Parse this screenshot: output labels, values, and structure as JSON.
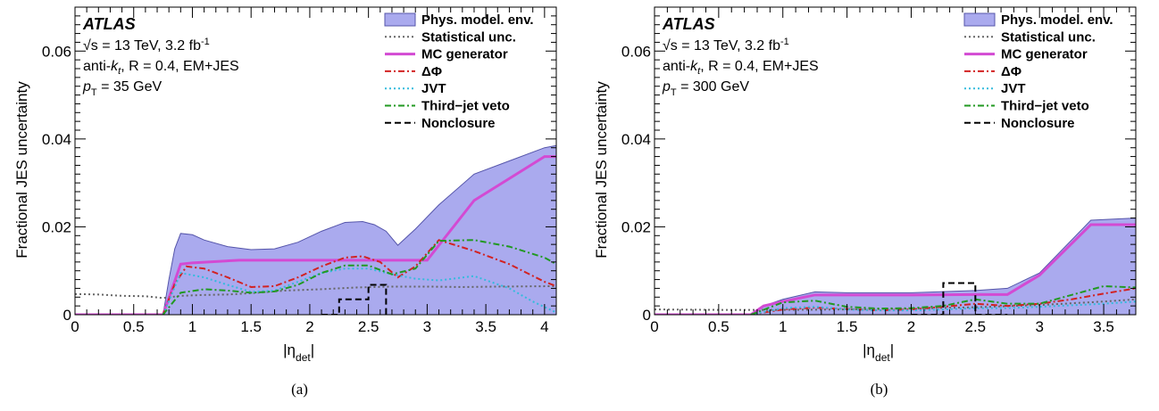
{
  "chart_data": [
    {
      "type": "line",
      "caption": "(a)",
      "xlabel": "|η_det|",
      "xlabel_main": "|η",
      "xlabel_sub": "det",
      "xlabel_close": "|",
      "ylabel": "Fractional JES uncertainty",
      "xlim": [
        0,
        4.1
      ],
      "ylim": [
        0,
        0.07
      ],
      "xticks": [
        0,
        0.5,
        1,
        1.5,
        2,
        2.5,
        3,
        3.5,
        4
      ],
      "xtick_labels": [
        "0",
        "0.5",
        "1",
        "1.5",
        "2",
        "2.5",
        "3",
        "3.5",
        "4"
      ],
      "yticks": [
        0,
        0.02,
        0.04,
        0.06
      ],
      "ytick_labels": [
        "0",
        "0.02",
        "0.04",
        "0.06"
      ],
      "annotations": {
        "experiment": "ATLAS",
        "line1": "√s = 13 TeV, 3.2 fb",
        "line1_sup": "-1",
        "line2_a": "anti-",
        "line2_k": "k",
        "line2_t": "t",
        "line2_r": ", R = 0.4, EM+JES",
        "line3_p": "p",
        "line3_T": "T",
        "line3_val": " = 35 GeV"
      },
      "legend_position": "top-right",
      "series": [
        {
          "name": "Phys. model. env.",
          "style": "band",
          "color": "#aaaaee",
          "edge": "#5555aa",
          "x": [
            0,
            0.75,
            0.8,
            0.85,
            0.9,
            1.0,
            1.1,
            1.3,
            1.5,
            1.7,
            1.9,
            2.1,
            2.3,
            2.45,
            2.55,
            2.65,
            2.75,
            2.9,
            3.1,
            3.4,
            3.7,
            4.0,
            4.1
          ],
          "y": [
            0,
            0,
            0.008,
            0.015,
            0.0185,
            0.0182,
            0.017,
            0.0155,
            0.0148,
            0.015,
            0.0165,
            0.019,
            0.021,
            0.0212,
            0.0205,
            0.019,
            0.0158,
            0.0195,
            0.025,
            0.032,
            0.035,
            0.038,
            0.0385
          ]
        },
        {
          "name": "Statistical unc.",
          "style": "dotted",
          "color": "#666666",
          "x": [
            0,
            0.2,
            0.4,
            0.6,
            0.75,
            0.9,
            1.1,
            1.3,
            1.5,
            1.8,
            2.1,
            2.4,
            2.7,
            3.0,
            3.3,
            3.6,
            4.1
          ],
          "y": [
            0.0047,
            0.0046,
            0.0043,
            0.0042,
            0.0038,
            0.0043,
            0.0045,
            0.0046,
            0.0049,
            0.0055,
            0.0058,
            0.0062,
            0.0064,
            0.0064,
            0.0063,
            0.0064,
            0.0065
          ]
        },
        {
          "name": "MC generator",
          "style": "solid",
          "color": "#d34ad3",
          "x": [
            0,
            0.75,
            0.9,
            1.0,
            1.4,
            1.8,
            2.2,
            2.6,
            3.0,
            3.4,
            4.0,
            4.1
          ],
          "y": [
            0,
            0,
            0.0115,
            0.0118,
            0.0124,
            0.0124,
            0.0124,
            0.0124,
            0.0124,
            0.026,
            0.036,
            0.036
          ]
        },
        {
          "name": "ΔΦ",
          "style": "dashdot",
          "color": "#d22222",
          "x": [
            0.75,
            0.85,
            0.95,
            1.1,
            1.3,
            1.5,
            1.7,
            1.9,
            2.1,
            2.3,
            2.45,
            2.6,
            2.75,
            2.9,
            3.1,
            3.4,
            3.7,
            4.0,
            4.1
          ],
          "y": [
            0,
            0.007,
            0.011,
            0.0105,
            0.0085,
            0.0063,
            0.0065,
            0.0085,
            0.011,
            0.013,
            0.0133,
            0.012,
            0.0085,
            0.011,
            0.017,
            0.0145,
            0.0115,
            0.0075,
            0.0065
          ]
        },
        {
          "name": "JVT",
          "style": "dotted",
          "color": "#33bbdd",
          "x": [
            0.75,
            0.9,
            1.1,
            1.3,
            1.5,
            1.7,
            1.9,
            2.1,
            2.3,
            2.5,
            2.7,
            2.9,
            3.1,
            3.4,
            3.7,
            3.9,
            4.1
          ],
          "y": [
            0,
            0.0095,
            0.0085,
            0.0068,
            0.0052,
            0.0055,
            0.0075,
            0.0095,
            0.0105,
            0.0105,
            0.0092,
            0.0082,
            0.0078,
            0.0088,
            0.006,
            0.003,
            0.0005
          ]
        },
        {
          "name": "Third−jet veto",
          "style": "dashdot",
          "color": "#229922",
          "x": [
            0.75,
            0.9,
            1.1,
            1.3,
            1.5,
            1.7,
            1.9,
            2.1,
            2.3,
            2.5,
            2.7,
            2.9,
            3.1,
            3.4,
            3.7,
            4.0,
            4.1
          ],
          "y": [
            0,
            0.005,
            0.0058,
            0.0055,
            0.005,
            0.0053,
            0.0068,
            0.0095,
            0.0112,
            0.0112,
            0.0092,
            0.0105,
            0.0168,
            0.017,
            0.0155,
            0.013,
            0.0115
          ]
        },
        {
          "name": "Nonclosure",
          "style": "dashed",
          "color": "#000000",
          "x": [
            2.1,
            2.25,
            2.25,
            2.5,
            2.5,
            2.65,
            2.65
          ],
          "y": [
            0,
            0,
            0.0035,
            0.0035,
            0.0068,
            0.0068,
            0
          ]
        }
      ]
    },
    {
      "type": "line",
      "caption": "(b)",
      "xlabel": "|η_det|",
      "xlabel_main": "|η",
      "xlabel_sub": "det",
      "xlabel_close": "|",
      "ylabel": "Fractional JES uncertainty",
      "xlim": [
        0,
        3.75
      ],
      "ylim": [
        0,
        0.07
      ],
      "xticks": [
        0,
        0.5,
        1,
        1.5,
        2,
        2.5,
        3,
        3.5
      ],
      "xtick_labels": [
        "0",
        "0.5",
        "1",
        "1.5",
        "2",
        "2.5",
        "3",
        "3.5"
      ],
      "yticks": [
        0,
        0.02,
        0.04,
        0.06
      ],
      "ytick_labels": [
        "0",
        "0.02",
        "0.04",
        "0.06"
      ],
      "annotations": {
        "experiment": "ATLAS",
        "line1": "√s = 13 TeV, 3.2 fb",
        "line1_sup": "-1",
        "line2_a": "anti-",
        "line2_k": "k",
        "line2_t": "t",
        "line2_r": ", R = 0.4, EM+JES",
        "line3_p": "p",
        "line3_T": "T",
        "line3_val": " = 300 GeV"
      },
      "legend_position": "top-right",
      "series": [
        {
          "name": "Phys. model. env.",
          "style": "band",
          "color": "#aaaaee",
          "edge": "#5555aa",
          "x": [
            0,
            0.75,
            0.85,
            1.0,
            1.25,
            1.5,
            2.0,
            2.5,
            2.75,
            3.0,
            3.4,
            3.75
          ],
          "y": [
            0,
            0,
            0.002,
            0.0035,
            0.0052,
            0.005,
            0.005,
            0.0055,
            0.006,
            0.0095,
            0.0215,
            0.022
          ]
        },
        {
          "name": "Statistical unc.",
          "style": "dotted",
          "color": "#666666",
          "x": [
            0,
            0.5,
            1.0,
            1.5,
            2.0,
            2.5,
            3.0,
            3.5,
            3.75
          ],
          "y": [
            0.0012,
            0.0011,
            0.0011,
            0.0012,
            0.0014,
            0.0017,
            0.0022,
            0.003,
            0.0035
          ]
        },
        {
          "name": "MC generator",
          "style": "solid",
          "color": "#d34ad3",
          "x": [
            0,
            0.75,
            0.85,
            1.0,
            1.25,
            1.5,
            2.0,
            2.5,
            2.75,
            3.0,
            3.4,
            3.75
          ],
          "y": [
            0,
            0,
            0.002,
            0.003,
            0.0045,
            0.0045,
            0.0045,
            0.0046,
            0.0046,
            0.009,
            0.0205,
            0.0205
          ]
        },
        {
          "name": "ΔΦ",
          "style": "dashdot",
          "color": "#d22222",
          "x": [
            0.75,
            1.0,
            1.25,
            1.5,
            1.75,
            2.0,
            2.25,
            2.5,
            2.75,
            3.0,
            3.25,
            3.5,
            3.75
          ],
          "y": [
            0,
            0.0012,
            0.0016,
            0.0013,
            0.001,
            0.0012,
            0.0018,
            0.0025,
            0.002,
            0.0025,
            0.0035,
            0.0048,
            0.006
          ]
        },
        {
          "name": "JVT",
          "style": "dotted",
          "color": "#33bbdd",
          "x": [
            0.75,
            1.0,
            1.25,
            1.5,
            1.75,
            2.0,
            2.25,
            2.5,
            2.75,
            3.0,
            3.5,
            3.75
          ],
          "y": [
            0,
            0.0015,
            0.0018,
            0.0012,
            0.001,
            0.001,
            0.0012,
            0.0015,
            0.0015,
            0.0018,
            0.0025,
            0.003
          ]
        },
        {
          "name": "Third−jet veto",
          "style": "dashdot",
          "color": "#229922",
          "x": [
            0.75,
            1.0,
            1.25,
            1.5,
            1.75,
            2.0,
            2.25,
            2.5,
            2.75,
            3.0,
            3.25,
            3.5,
            3.75
          ],
          "y": [
            0,
            0.0028,
            0.0032,
            0.0018,
            0.0014,
            0.0015,
            0.002,
            0.0035,
            0.0025,
            0.0025,
            0.0045,
            0.0065,
            0.0062
          ]
        },
        {
          "name": "Nonclosure",
          "style": "dashed",
          "color": "#000000",
          "x": [
            2.0,
            2.25,
            2.25,
            2.5,
            2.5,
            2.75
          ],
          "y": [
            0,
            0,
            0.0072,
            0.0072,
            0,
            0
          ]
        }
      ]
    }
  ]
}
